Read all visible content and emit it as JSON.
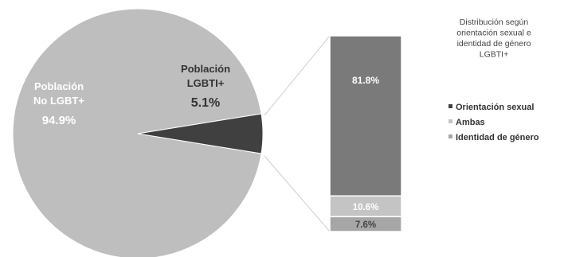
{
  "chart_data": [
    {
      "type": "pie",
      "slices": [
        {
          "label_lines": [
            "Población",
            "No LGBT+"
          ],
          "value": 94.9,
          "value_label": "94.9%",
          "color": "#bebebe"
        },
        {
          "label_lines": [
            "Población",
            "LGBTI+"
          ],
          "value": 5.1,
          "value_label": "5.1%",
          "color": "#404040"
        }
      ]
    },
    {
      "type": "bar",
      "stacked": true,
      "subtitle_lines": [
        "Distribución según",
        "orientación sexual e",
        "identidad de género",
        "LGBTI+"
      ],
      "categories": [
        "Población LGBTI+"
      ],
      "series": [
        {
          "name": "Orientación sexual",
          "values": [
            81.8
          ],
          "value_label": "81.8%",
          "color": "#7a7a7a"
        },
        {
          "name": "Ambas",
          "values": [
            10.6
          ],
          "value_label": "10.6%",
          "color": "#c4c4c4"
        },
        {
          "name": "Identidad de género",
          "values": [
            7.6
          ],
          "value_label": "7.6%",
          "color": "#a6a6a6"
        }
      ],
      "legend_position": "right"
    }
  ]
}
